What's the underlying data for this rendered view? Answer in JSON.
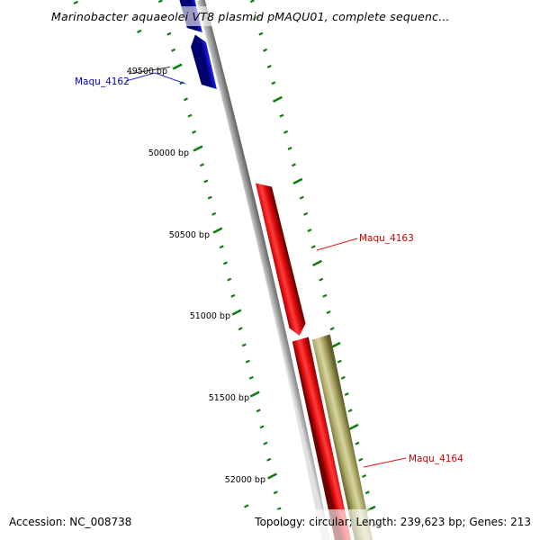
{
  "title": "Marinobacter aquaeolei VT8 plasmid pMAQU01, complete sequenc...",
  "ruler": {
    "unit": "bp",
    "tick_labels": [
      "49500 bp",
      "50000 bp",
      "50500 bp",
      "51000 bp",
      "51500 bp",
      "52000 bp"
    ]
  },
  "genes": {
    "maqu_4162": {
      "label": "Maqu_4162",
      "color": "#0000cc",
      "direction": "up"
    },
    "maqu_4163": {
      "label": "Maqu_4163",
      "color": "#cc0000",
      "direction": "down"
    },
    "maqu_4164": {
      "label": "Maqu_4164",
      "color": "#cc0000",
      "direction": "down"
    }
  },
  "status_bar": {
    "accession": "Accession: NC_008738",
    "summary": "Topology: circular; Length: 239,623 bp; Genes: 213"
  },
  "colors": {
    "gene_forward_red": "#e00d0d",
    "gene_reverse_blue": "#1515e0",
    "gene_other_olive": "#c9c68f",
    "backbone_gray": "#9c9c9c",
    "ruler_tick_green": "#0d7e0d"
  }
}
